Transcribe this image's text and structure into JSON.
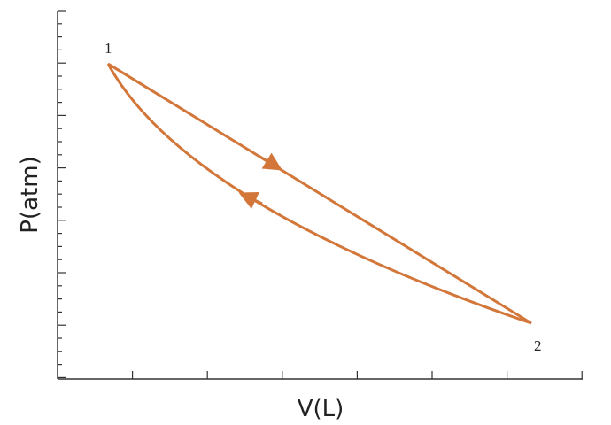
{
  "axes": {
    "x_label": "V(L)",
    "y_label": "P(atm)"
  },
  "points": [
    {
      "label": "1"
    },
    {
      "label": "2"
    }
  ]
}
